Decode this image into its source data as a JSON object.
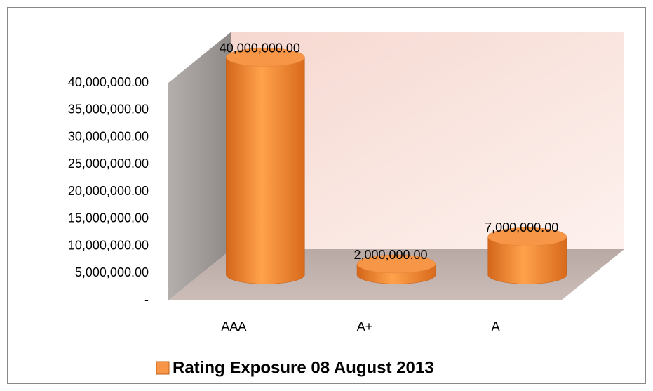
{
  "chart_data": {
    "type": "cylinder",
    "categories": [
      "AAA",
      "A+",
      "A"
    ],
    "series": [
      {
        "name": "Rating Exposure 08 August 2013",
        "color": "#f79646",
        "values": [
          40000000,
          2000000,
          7000000
        ],
        "value_labels": [
          "40,000,000.00",
          "2,000,000.00",
          "7,000,000.00"
        ]
      }
    ],
    "ylim": [
      0,
      40000000
    ],
    "yticks": [
      {
        "value": 0,
        "label": "-"
      },
      {
        "value": 5000000,
        "label": "5,000,000.00"
      },
      {
        "value": 10000000,
        "label": "10,000,000.00"
      },
      {
        "value": 15000000,
        "label": "15,000,000.00"
      },
      {
        "value": 20000000,
        "label": "20,000,000.00"
      },
      {
        "value": 25000000,
        "label": "25,000,000.00"
      },
      {
        "value": 30000000,
        "label": "30,000,000.00"
      },
      {
        "value": 35000000,
        "label": "35,000,000.00"
      },
      {
        "value": 40000000,
        "label": "40,000,000.00"
      }
    ],
    "grid": false,
    "legend": "bottom"
  }
}
